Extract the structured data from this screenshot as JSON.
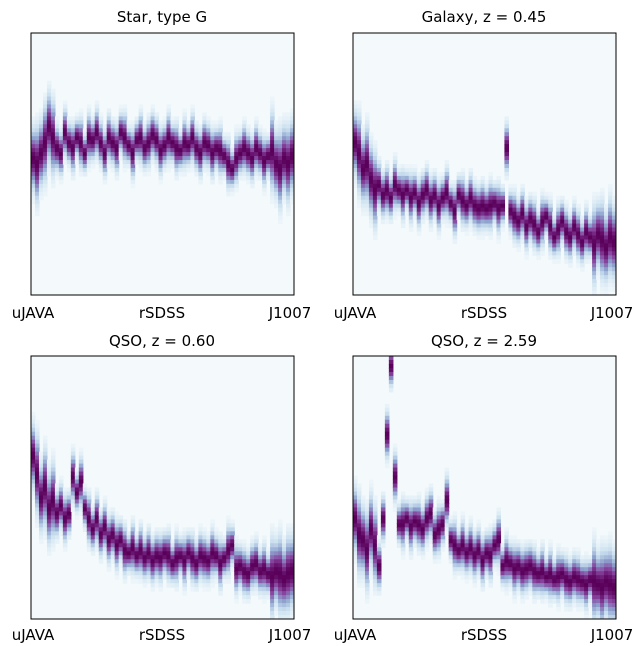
{
  "chart_data": [
    {
      "type": "heatmap",
      "title": "Star, type G",
      "xlabel": "",
      "ylabel": "",
      "x_tick_labels": [
        "uJAVA",
        "rSDSS",
        "J1007"
      ],
      "filters_count": 66,
      "colormap": "white-to-purple",
      "grid": false,
      "series": [
        {
          "name": "",
          "values": [
            0.48,
            0.5,
            0.46,
            0.42,
            0.36,
            0.4,
            0.44,
            0.46,
            0.38,
            0.42,
            0.44,
            0.4,
            0.42,
            0.46,
            0.4,
            0.41,
            0.38,
            0.42,
            0.46,
            0.4,
            0.42,
            0.44,
            0.38,
            0.4,
            0.43,
            0.46,
            0.41,
            0.4,
            0.44,
            0.42,
            0.39,
            0.41,
            0.45,
            0.43,
            0.4,
            0.42,
            0.44,
            0.45,
            0.42,
            0.43,
            0.4,
            0.44,
            0.46,
            0.42,
            0.43,
            0.46,
            0.44,
            0.45,
            0.47,
            0.5,
            0.52,
            0.48,
            0.46,
            0.44,
            0.46,
            0.48,
            0.44,
            0.46,
            0.49,
            0.47,
            0.45,
            0.5,
            0.52,
            0.48,
            0.5,
            0.47
          ]
        }
      ]
    },
    {
      "type": "heatmap",
      "title": "Galaxy, z = 0.45",
      "xlabel": "",
      "ylabel": "",
      "x_tick_labels": [
        "uJAVA",
        "rSDSS",
        "J1007"
      ],
      "filters_count": 66,
      "colormap": "white-to-purple",
      "grid": false,
      "series": [
        {
          "name": "",
          "values": [
            0.42,
            0.46,
            0.52,
            0.5,
            0.56,
            0.6,
            0.58,
            0.62,
            0.6,
            0.63,
            0.58,
            0.6,
            0.62,
            0.6,
            0.63,
            0.61,
            0.65,
            0.62,
            0.6,
            0.64,
            0.62,
            0.66,
            0.63,
            0.61,
            0.65,
            0.68,
            0.62,
            0.64,
            0.66,
            0.63,
            0.66,
            0.67,
            0.66,
            0.67,
            0.66,
            0.65,
            0.67,
            0.66,
            0.44,
            0.68,
            0.7,
            0.72,
            0.69,
            0.74,
            0.71,
            0.73,
            0.76,
            0.72,
            0.7,
            0.74,
            0.78,
            0.75,
            0.72,
            0.76,
            0.78,
            0.74,
            0.77,
            0.8,
            0.76,
            0.78,
            0.81,
            0.77,
            0.79,
            0.82,
            0.78,
            0.8
          ]
        }
      ]
    },
    {
      "type": "heatmap",
      "title": "QSO, z = 0.60",
      "xlabel": "",
      "ylabel": "",
      "x_tick_labels": [
        "uJAVA",
        "rSDSS",
        "J1007"
      ],
      "filters_count": 66,
      "colormap": "white-to-purple",
      "grid": false,
      "series": [
        {
          "name": "",
          "values": [
            0.38,
            0.45,
            0.54,
            0.5,
            0.58,
            0.55,
            0.6,
            0.57,
            0.62,
            0.6,
            0.46,
            0.52,
            0.48,
            0.58,
            0.62,
            0.66,
            0.62,
            0.68,
            0.65,
            0.7,
            0.68,
            0.72,
            0.7,
            0.74,
            0.75,
            0.73,
            0.76,
            0.74,
            0.77,
            0.75,
            0.78,
            0.76,
            0.77,
            0.75,
            0.76,
            0.79,
            0.77,
            0.76,
            0.78,
            0.75,
            0.77,
            0.79,
            0.76,
            0.77,
            0.78,
            0.75,
            0.76,
            0.79,
            0.77,
            0.74,
            0.72,
            0.81,
            0.8,
            0.82,
            0.83,
            0.8,
            0.79,
            0.82,
            0.81,
            0.83,
            0.84,
            0.82,
            0.83,
            0.85,
            0.83,
            0.82
          ]
        }
      ]
    },
    {
      "type": "heatmap",
      "title": "QSO, z = 2.59",
      "xlabel": "",
      "ylabel": "",
      "x_tick_labels": [
        "uJAVA",
        "rSDSS",
        "J1007"
      ],
      "filters_count": 66,
      "colormap": "white-to-purple",
      "grid": false,
      "series": [
        {
          "name": "",
          "values": [
            0.62,
            0.68,
            0.7,
            0.74,
            0.66,
            0.72,
            0.8,
            0.62,
            0.3,
            0.04,
            0.46,
            0.64,
            0.64,
            0.62,
            0.65,
            0.63,
            0.64,
            0.66,
            0.62,
            0.6,
            0.68,
            0.66,
            0.64,
            0.55,
            0.7,
            0.72,
            0.74,
            0.72,
            0.75,
            0.73,
            0.76,
            0.74,
            0.78,
            0.75,
            0.76,
            0.72,
            0.7,
            0.8,
            0.78,
            0.79,
            0.81,
            0.8,
            0.82,
            0.81,
            0.8,
            0.82,
            0.83,
            0.82,
            0.84,
            0.83,
            0.85,
            0.84,
            0.83,
            0.85,
            0.86,
            0.84,
            0.85,
            0.86,
            0.87,
            0.85,
            0.86,
            0.87,
            0.88,
            0.86,
            0.87,
            0.88
          ]
        }
      ]
    }
  ]
}
